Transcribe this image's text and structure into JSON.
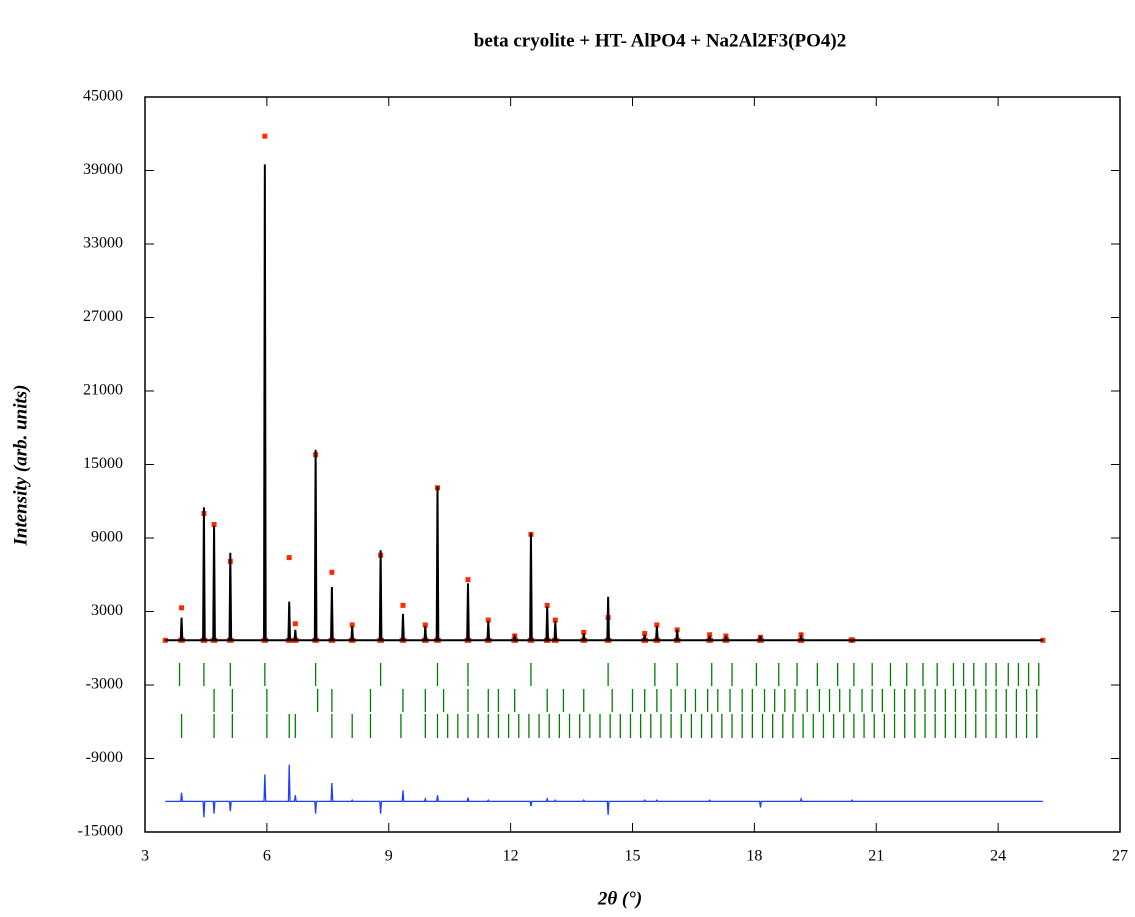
{
  "chart_data": {
    "type": "rietveld",
    "title": "beta cryolite + HT- AlPO4 + Na2Al2F3(PO4)2",
    "x_label": "2θ (°)",
    "y_label": "Intensity (arb. units)",
    "xlim": [
      3,
      27
    ],
    "xticks": [
      3,
      6,
      9,
      12,
      15,
      18,
      21,
      24,
      27
    ],
    "ylim": [
      -15000,
      45000
    ],
    "yticks": [
      -15000,
      -9000,
      -3000,
      3000,
      9000,
      15000,
      21000,
      27000,
      33000,
      39000,
      45000
    ],
    "x": [
      3.5,
      3.88,
      3.9,
      3.92,
      4.43,
      4.45,
      4.47,
      4.68,
      4.7,
      4.72,
      5.08,
      5.1,
      5.12,
      5.93,
      5.95,
      5.97,
      6.53,
      6.55,
      6.57,
      6.68,
      6.7,
      6.72,
      7.18,
      7.2,
      7.22,
      7.58,
      7.6,
      7.62,
      8.08,
      8.1,
      8.12,
      8.78,
      8.8,
      8.82,
      9.33,
      9.35,
      9.37,
      9.88,
      9.9,
      9.92,
      10.18,
      10.2,
      10.22,
      10.93,
      10.95,
      10.97,
      11.43,
      11.45,
      11.47,
      12.08,
      12.1,
      12.12,
      12.48,
      12.5,
      12.52,
      12.88,
      12.9,
      12.92,
      13.08,
      13.1,
      13.12,
      13.78,
      13.8,
      13.82,
      14.38,
      14.4,
      14.42,
      15.28,
      15.3,
      15.32,
      15.58,
      15.6,
      15.62,
      16.08,
      16.1,
      16.12,
      16.88,
      16.9,
      16.92,
      17.28,
      17.3,
      17.32,
      18.13,
      18.15,
      18.17,
      19.13,
      19.15,
      19.17,
      20.38,
      20.4,
      20.42,
      25.1
    ],
    "series": [
      {
        "style": "markers",
        "color": "#ff2a00",
        "values": [
          650,
          650,
          3300,
          650,
          650,
          11000,
          650,
          650,
          10100,
          650,
          650,
          7100,
          650,
          650,
          41800,
          650,
          650,
          7400,
          650,
          650,
          2000,
          650,
          650,
          15800,
          650,
          650,
          6200,
          650,
          650,
          1900,
          650,
          650,
          7600,
          650,
          650,
          3500,
          650,
          650,
          1900,
          650,
          650,
          13100,
          650,
          650,
          5600,
          650,
          650,
          2300,
          650,
          650,
          1000,
          650,
          650,
          9300,
          650,
          650,
          3500,
          650,
          650,
          2300,
          650,
          650,
          1300,
          650,
          650,
          2500,
          650,
          650,
          1200,
          650,
          650,
          1900,
          650,
          650,
          1500,
          650,
          650,
          1100,
          650,
          650,
          1000,
          650,
          650,
          900,
          650,
          650,
          1100,
          650,
          650,
          700,
          650,
          650
        ]
      },
      {
        "style": "line",
        "color": "#000000",
        "values": [
          650,
          650,
          2500,
          650,
          650,
          11500,
          650,
          650,
          10000,
          650,
          650,
          7800,
          650,
          650,
          39500,
          650,
          650,
          3800,
          650,
          650,
          1500,
          650,
          650,
          16200,
          650,
          650,
          5000,
          650,
          650,
          1800,
          650,
          650,
          8000,
          650,
          650,
          2800,
          650,
          650,
          1800,
          650,
          650,
          13200,
          650,
          650,
          5300,
          650,
          650,
          2200,
          650,
          650,
          900,
          650,
          650,
          9400,
          650,
          650,
          3400,
          650,
          650,
          2200,
          650,
          650,
          1200,
          650,
          650,
          4200,
          650,
          650,
          1100,
          650,
          650,
          1800,
          650,
          650,
          1500,
          650,
          650,
          1000,
          650,
          650,
          1000,
          650,
          650,
          1000,
          650,
          650,
          900,
          650,
          650,
          600,
          650,
          650
        ]
      },
      {
        "style": "line",
        "color": "#1f3fff",
        "values": [
          -12500,
          -12500,
          -11800,
          -12500,
          -12500,
          -13800,
          -12500,
          -12500,
          -13500,
          -12500,
          -12500,
          -13300,
          -12500,
          -12500,
          -10300,
          -12500,
          -12500,
          -9500,
          -12500,
          -12500,
          -12000,
          -12500,
          -12500,
          -13500,
          -12500,
          -12500,
          -11000,
          -12500,
          -12500,
          -12400,
          -12500,
          -12500,
          -13500,
          -12500,
          -12500,
          -11600,
          -12500,
          -12500,
          -12300,
          -12500,
          -12500,
          -12000,
          -12500,
          -12500,
          -12200,
          -12500,
          -12500,
          -12400,
          -12500,
          -12500,
          -12500,
          -12500,
          -12500,
          -12900,
          -12500,
          -12500,
          -12300,
          -12500,
          -12500,
          -12400,
          -12500,
          -12500,
          -12400,
          -12500,
          -12500,
          -13600,
          -12500,
          -12500,
          -12400,
          -12500,
          -12500,
          -12400,
          -12500,
          -12500,
          -12500,
          -12500,
          -12500,
          -12400,
          -12500,
          -12500,
          -12500,
          -12500,
          -12500,
          -13000,
          -12500,
          -12500,
          -12300,
          -12500,
          -12500,
          -12400,
          -12500,
          -12500
        ]
      }
    ],
    "bragg_positions": [
      {
        "color": "#008000",
        "values": [
          3.85,
          4.45,
          5.1,
          5.95,
          7.2,
          8.8,
          10.2,
          10.95,
          12.5,
          14.4,
          15.55,
          16.1,
          16.95,
          17.45,
          18.05,
          18.6,
          19.05,
          19.55,
          20.05,
          20.45,
          20.9,
          21.35,
          21.75,
          22.15,
          22.5,
          22.9,
          23.15,
          23.4,
          23.7,
          23.95,
          24.25,
          24.5,
          24.75,
          25.0
        ]
      },
      {
        "color": "#008000",
        "values": [
          4.7,
          5.15,
          6.0,
          7.25,
          7.6,
          8.55,
          9.35,
          9.9,
          10.35,
          10.95,
          11.45,
          11.7,
          12.1,
          12.9,
          13.3,
          13.8,
          14.5,
          15.0,
          15.3,
          15.6,
          15.95,
          16.3,
          16.55,
          16.85,
          17.1,
          17.4,
          17.7,
          17.95,
          18.25,
          18.5,
          18.75,
          19.0,
          19.3,
          19.6,
          19.85,
          20.1,
          20.35,
          20.65,
          20.9,
          21.15,
          21.45,
          21.7,
          21.95,
          22.2,
          22.45,
          22.7,
          22.95,
          23.2,
          23.45,
          23.7,
          23.95,
          24.2,
          24.45,
          24.7,
          24.95
        ]
      },
      {
        "color": "#008000",
        "values": [
          3.9,
          4.7,
          5.15,
          6.0,
          6.55,
          6.7,
          7.6,
          8.1,
          8.55,
          9.3,
          9.9,
          10.2,
          10.45,
          10.7,
          10.95,
          11.2,
          11.45,
          11.7,
          11.95,
          12.2,
          12.45,
          12.7,
          12.95,
          13.2,
          13.45,
          13.7,
          13.95,
          14.2,
          14.45,
          14.7,
          14.95,
          15.2,
          15.45,
          15.7,
          15.95,
          16.2,
          16.45,
          16.7,
          16.95,
          17.2,
          17.45,
          17.7,
          17.95,
          18.2,
          18.45,
          18.7,
          18.95,
          19.2,
          19.45,
          19.7,
          19.95,
          20.2,
          20.45,
          20.7,
          20.95,
          21.2,
          21.45,
          21.7,
          21.95,
          22.2,
          22.45,
          22.7,
          22.95,
          23.2,
          23.45,
          23.7,
          23.95,
          24.2,
          24.45,
          24.7,
          24.95
        ]
      }
    ]
  }
}
